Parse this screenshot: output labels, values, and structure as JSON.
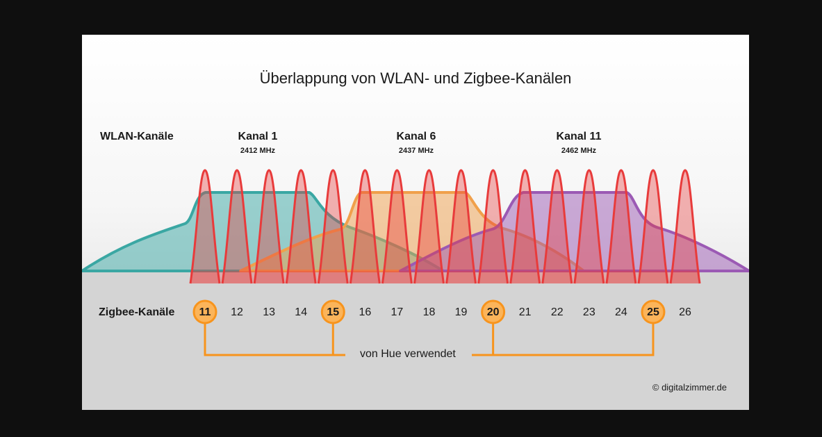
{
  "title": "Überlappung von WLAN- und Zigbee-Kanälen",
  "wlan_label": "WLAN-Kanäle",
  "wlan_channels": [
    {
      "name": "Kanal 1",
      "freq": "2412 MHz",
      "color": "#3aa7a3"
    },
    {
      "name": "Kanal 6",
      "freq": "2437 MHz",
      "color": "#f0a04b"
    },
    {
      "name": "Kanal 11",
      "freq": "2462 MHz",
      "color": "#9b5ab4"
    }
  ],
  "zigbee_label": "Zigbee-Kanäle",
  "zigbee_channels": [
    "11",
    "12",
    "13",
    "14",
    "15",
    "16",
    "17",
    "18",
    "19",
    "20",
    "21",
    "22",
    "23",
    "24",
    "25",
    "26"
  ],
  "hue_used": [
    "11",
    "15",
    "20",
    "25"
  ],
  "hue_label": "von Hue verwendet",
  "copyright": "© digitalzimmer.de",
  "colors": {
    "zigbee_peak": "#e83b3b",
    "hue_marker": "#f7941d",
    "hue_marker_fill": "#fbb45a",
    "background": "#0f0f0f"
  }
}
